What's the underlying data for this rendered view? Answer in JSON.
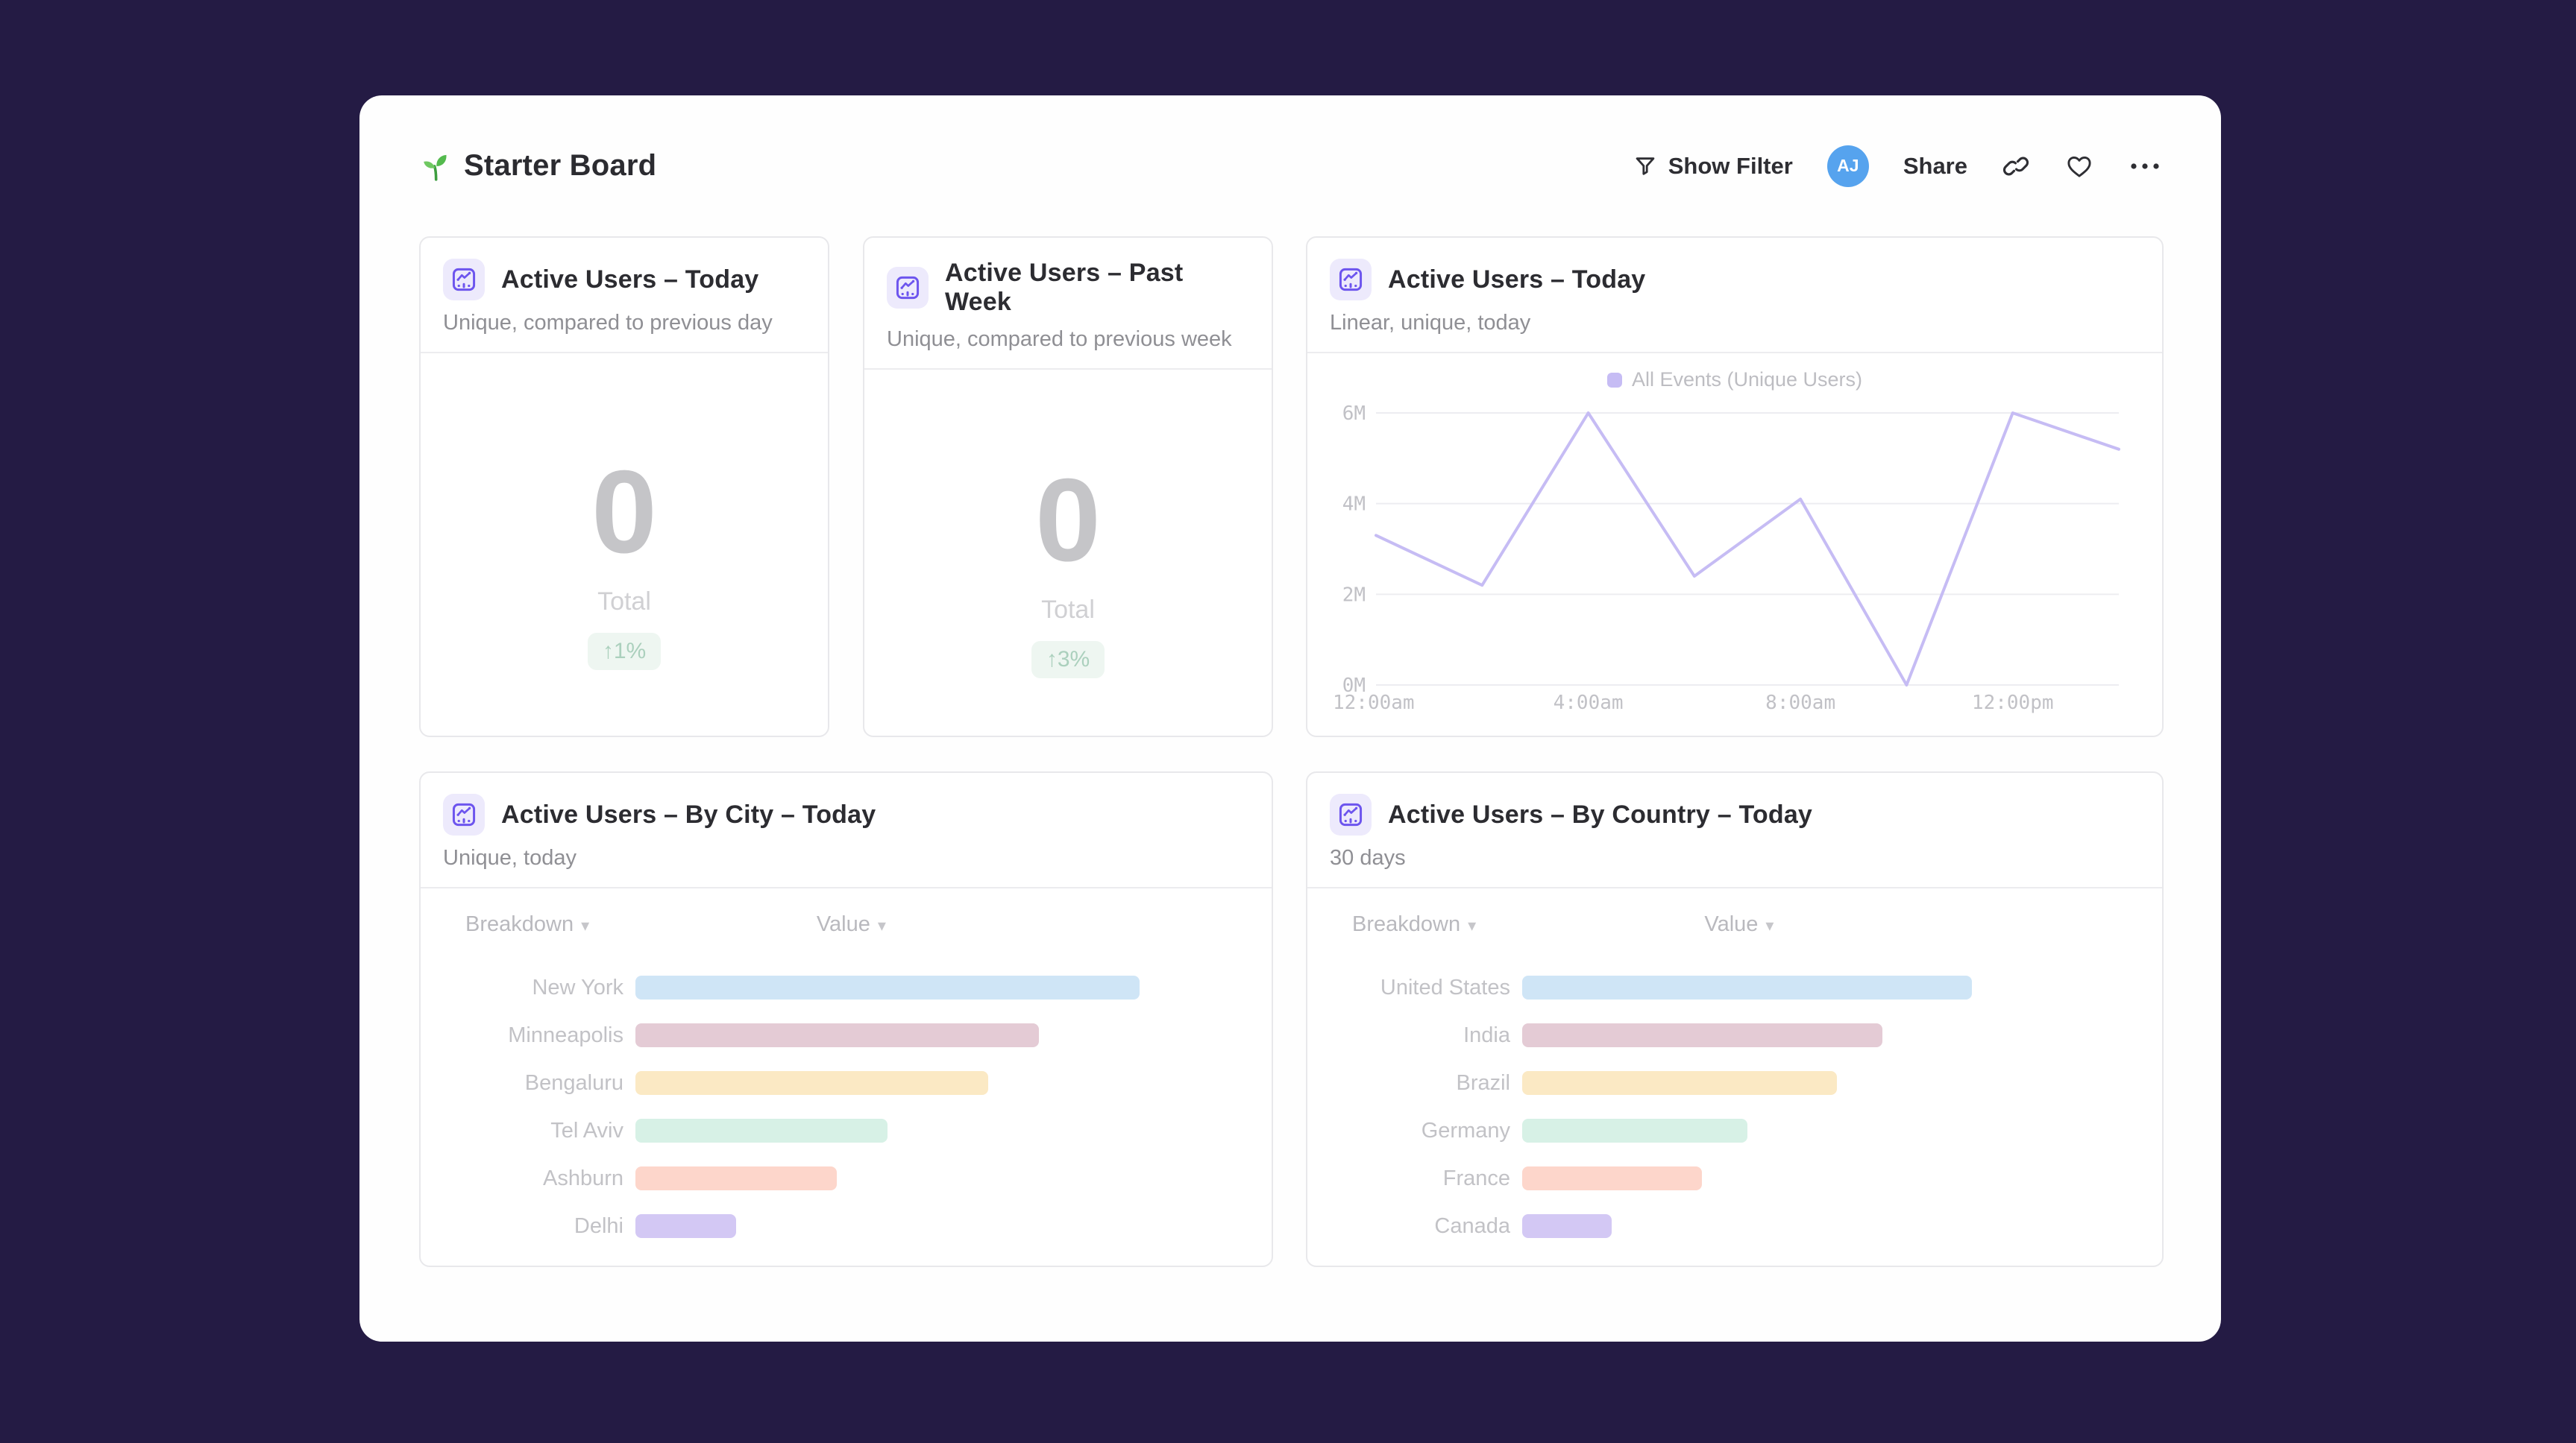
{
  "board": {
    "title": "Starter Board"
  },
  "toolbar": {
    "show_filter": "Show Filter",
    "avatar_initials": "AJ",
    "avatar_color": "#56a3ee",
    "share": "Share"
  },
  "cards": {
    "active_today": {
      "title": "Active Users – Today",
      "subtitle": "Unique, compared to previous day",
      "big_value": "0",
      "value_caption": "Total",
      "delta": "↑1%",
      "delta_color": "#abd0bd",
      "delta_bg": "#eef6f1"
    },
    "active_past_week": {
      "title": "Active Users – Past Week",
      "subtitle": "Unique, compared to previous week",
      "big_value": "0",
      "value_caption": "Total",
      "delta": "↑3%",
      "delta_color": "#abd0bd",
      "delta_bg": "#eef6f1"
    },
    "active_today_line": {
      "title": "Active Users – Today",
      "subtitle": "Linear, unique, today"
    },
    "by_city": {
      "title": "Active Users – By City – Today",
      "subtitle": "Unique, today",
      "columns": {
        "breakdown": "Breakdown",
        "value": "Value"
      },
      "sort_glyph": "▾",
      "rows": [
        {
          "label": "New York",
          "value_pct": 100,
          "bar_pct": 82.6,
          "color": "#cfe5f6"
        },
        {
          "label": "Minneapolis",
          "value_pct": 80,
          "bar_pct": 66.1,
          "color": "#e4cbd5"
        },
        {
          "label": "Bengaluru",
          "value_pct": 70,
          "bar_pct": 57.8,
          "color": "#fbe9c4"
        },
        {
          "label": "Tel Aviv",
          "value_pct": 50,
          "bar_pct": 41.3,
          "color": "#d7f1e6"
        },
        {
          "label": "Ashburn",
          "value_pct": 40,
          "bar_pct": 33.0,
          "color": "#fdd6cb"
        },
        {
          "label": "Delhi",
          "value_pct": 20,
          "bar_pct": 16.5,
          "color": "#d3c8f4"
        }
      ]
    },
    "by_country": {
      "title": "Active Users – By Country – Today",
      "subtitle": "30 days",
      "columns": {
        "breakdown": "Breakdown",
        "value": "Value"
      },
      "sort_glyph": "▾",
      "rows": [
        {
          "label": "United States",
          "value_pct": 100,
          "bar_pct": 73.2,
          "color": "#cfe5f6"
        },
        {
          "label": "India",
          "value_pct": 80,
          "bar_pct": 58.6,
          "color": "#e4cbd5"
        },
        {
          "label": "Brazil",
          "value_pct": 70,
          "bar_pct": 51.2,
          "color": "#fbe9c4"
        },
        {
          "label": "Germany",
          "value_pct": 50,
          "bar_pct": 36.6,
          "color": "#d7f1e6"
        },
        {
          "label": "France",
          "value_pct": 40,
          "bar_pct": 29.3,
          "color": "#fdd6cb"
        },
        {
          "label": "Canada",
          "value_pct": 20,
          "bar_pct": 14.6,
          "color": "#d3c8f4"
        }
      ]
    }
  },
  "chart_data": {
    "type": "line",
    "title": "Active Users – Today",
    "subtitle": "Linear, unique, today",
    "series": [
      {
        "name": "All Events (Unique Users)",
        "x_hours": [
          0,
          2,
          4,
          6,
          8,
          10,
          12,
          14
        ],
        "values_millions": [
          3.3,
          2.2,
          6.0,
          2.4,
          4.1,
          0,
          6.0,
          5.2
        ]
      }
    ],
    "x_range_hours": [
      0,
      14
    ],
    "ylim": [
      0,
      6
    ],
    "yticks": [
      {
        "value": 0,
        "label": "0M"
      },
      {
        "value": 2,
        "label": "2M"
      },
      {
        "value": 4,
        "label": "4M"
      },
      {
        "value": 6,
        "label": "6M"
      }
    ],
    "xticks": [
      {
        "hour": 0,
        "label": "12:00am"
      },
      {
        "hour": 4,
        "label": "4:00am"
      },
      {
        "hour": 8,
        "label": "8:00am"
      },
      {
        "hour": 12,
        "label": "12:00pm"
      }
    ],
    "grid": "horizontal",
    "legend_position": "top",
    "line_color": "#c6bcf4",
    "grid_color": "#ededf1"
  }
}
